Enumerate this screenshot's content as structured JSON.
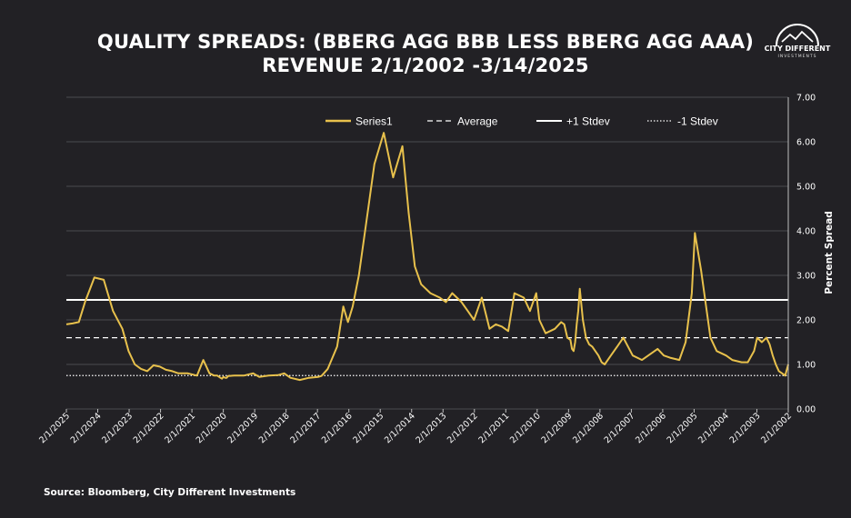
{
  "header": {
    "title_line1": "QUALITY SPREADS: (BBERG AGG BBB LESS BBERG AGG AAA)",
    "title_line2": "REVENUE 2/1/2002 -3/14/2025"
  },
  "logo": {
    "icon": "mountain-arc-logo-icon",
    "name": "CITY DIFFERENT",
    "sub": "INVESTMENTS"
  },
  "footer": {
    "source": "Source: Bloomberg, City Different Investments"
  },
  "colors": {
    "background": "#222125",
    "series": "#e8c14c",
    "grid": "#4a4a4e",
    "reference": "#ffffff"
  },
  "chart_data": {
    "type": "line",
    "title": "QUALITY SPREADS: (BBERG AGG BBB LESS BBERG AGG AAA) REVENUE 2/1/2002 -3/14/2025",
    "ylabel": "Percent Spread",
    "xlabel": "",
    "ylim": [
      0,
      7
    ],
    "yticks": [
      "0.00",
      "1.00",
      "2.00",
      "3.00",
      "4.00",
      "5.00",
      "6.00",
      "7.00"
    ],
    "y_axis_side": "right",
    "x_reversed": true,
    "grid": true,
    "legend_position": "top",
    "categories": [
      "2/1/2025",
      "2/1/2024",
      "2/1/2023",
      "2/1/2022",
      "2/1/2021",
      "2/1/2020",
      "2/1/2019",
      "2/1/2018",
      "2/1/2017",
      "2/1/2016",
      "2/1/2015",
      "2/1/2014",
      "2/1/2013",
      "2/1/2012",
      "2/1/2011",
      "2/1/2010",
      "2/1/2009",
      "2/1/2008",
      "2/1/2007",
      "2/1/2006",
      "2/1/2005",
      "2/1/2004",
      "2/1/2003",
      "2/1/2002"
    ],
    "series": [
      {
        "name": "Series1",
        "style": "solid",
        "x": [
          2025.2,
          2025.0,
          2024.8,
          2024.6,
          2024.3,
          2024.0,
          2023.7,
          2023.4,
          2023.2,
          2023.0,
          2022.8,
          2022.6,
          2022.4,
          2022.2,
          2022.0,
          2021.8,
          2021.6,
          2021.3,
          2021.0,
          2020.8,
          2020.6,
          2020.45,
          2020.35,
          2020.25,
          2020.2,
          2020.15,
          2020.1,
          2020.05,
          2020.0,
          2019.8,
          2019.5,
          2019.2,
          2019.0,
          2018.7,
          2018.4,
          2018.2,
          2018.0,
          2017.7,
          2017.4,
          2017.1,
          2017.0,
          2016.8,
          2016.5,
          2016.3,
          2016.15,
          2016.0,
          2015.8,
          2015.5,
          2015.3,
          2015.0,
          2014.7,
          2014.4,
          2014.2,
          2014.0,
          2013.8,
          2013.5,
          2013.2,
          2013.0,
          2012.8,
          2012.5,
          2012.3,
          2012.1,
          2012.0,
          2011.85,
          2011.6,
          2011.4,
          2011.2,
          2011.0,
          2010.8,
          2010.5,
          2010.3,
          2010.1,
          2010.0,
          2009.8,
          2009.5,
          2009.3,
          2009.2,
          2009.1,
          2009.0,
          2008.95,
          2008.9,
          2008.85,
          2008.8,
          2008.75,
          2008.7,
          2008.6,
          2008.5,
          2008.4,
          2008.3,
          2008.2,
          2008.1,
          2008.0,
          2007.9,
          2007.7,
          2007.5,
          2007.3,
          2007.0,
          2006.7,
          2006.4,
          2006.2,
          2006.0,
          2005.8,
          2005.5,
          2005.3,
          2005.1,
          2005.0,
          2004.8,
          2004.5,
          2004.3,
          2004.0,
          2003.8,
          2003.5,
          2003.3,
          2003.1,
          2003.0,
          2002.85,
          2002.7,
          2002.6,
          2002.5,
          2002.4,
          2002.3,
          2002.2,
          2002.1,
          2002.0
        ],
        "y": [
          1.9,
          1.92,
          1.95,
          2.4,
          2.95,
          2.9,
          2.2,
          1.8,
          1.3,
          1.0,
          0.9,
          0.85,
          0.98,
          0.95,
          0.88,
          0.85,
          0.8,
          0.8,
          0.75,
          1.1,
          0.8,
          0.75,
          0.75,
          0.7,
          0.68,
          0.72,
          0.7,
          0.7,
          0.74,
          0.75,
          0.75,
          0.8,
          0.72,
          0.75,
          0.76,
          0.8,
          0.7,
          0.65,
          0.7,
          0.72,
          0.74,
          0.9,
          1.4,
          2.3,
          1.95,
          2.3,
          3.0,
          4.5,
          5.5,
          6.2,
          5.2,
          5.9,
          4.4,
          3.2,
          2.8,
          2.6,
          2.5,
          2.4,
          2.6,
          2.4,
          2.2,
          2.0,
          2.2,
          2.5,
          1.8,
          1.9,
          1.85,
          1.75,
          2.6,
          2.5,
          2.2,
          2.6,
          2.0,
          1.7,
          1.8,
          1.95,
          1.9,
          1.6,
          1.55,
          1.35,
          1.3,
          1.5,
          1.9,
          2.2,
          2.7,
          2.0,
          1.6,
          1.45,
          1.4,
          1.3,
          1.2,
          1.05,
          1.0,
          1.2,
          1.4,
          1.6,
          1.2,
          1.1,
          1.25,
          1.35,
          1.2,
          1.15,
          1.1,
          1.5,
          2.6,
          3.95,
          3.1,
          1.6,
          1.3,
          1.2,
          1.1,
          1.05,
          1.05,
          1.3,
          1.6,
          1.5,
          1.6,
          1.45,
          1.2,
          1.0,
          0.85,
          0.8,
          0.75,
          1.0
        ]
      }
    ],
    "reference_lines": [
      {
        "name": "Average",
        "value": 1.6,
        "style": "dashed"
      },
      {
        "name": "+1 Stdev",
        "value": 2.45,
        "style": "solid"
      },
      {
        "name": "-1 Stdev",
        "value": 0.75,
        "style": "dotted"
      }
    ]
  }
}
